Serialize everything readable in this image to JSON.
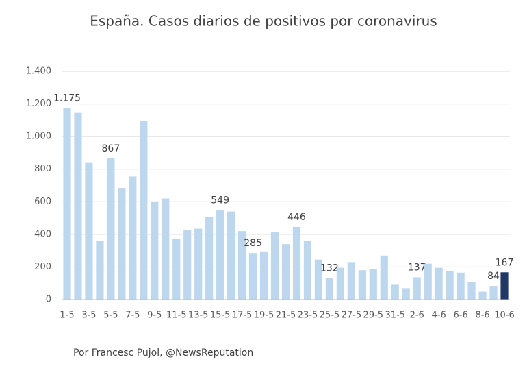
{
  "chart_data": {
    "type": "bar",
    "title": "España. Casos diarios de positivos por coronavirus",
    "source": "Por Francesc Pujol, @NewsReputation",
    "categories": [
      "1-5",
      null,
      "3-5",
      null,
      "5-5",
      null,
      "7-5",
      null,
      "9-5",
      null,
      "11-5",
      null,
      "13-5",
      null,
      "15-5",
      null,
      "17-5",
      null,
      "19-5",
      null,
      "21-5",
      null,
      "23-5",
      null,
      "25-5",
      null,
      "27-5",
      null,
      "29-5",
      null,
      "31-5",
      null,
      "2-6",
      null,
      "4-6",
      null,
      "6-6",
      null,
      "8-6",
      null,
      "10-6"
    ],
    "values": [
      1175,
      1145,
      838,
      358,
      867,
      685,
      755,
      1095,
      600,
      620,
      370,
      425,
      435,
      505,
      549,
      540,
      420,
      285,
      295,
      415,
      340,
      446,
      360,
      245,
      132,
      195,
      230,
      180,
      185,
      270,
      95,
      70,
      137,
      220,
      195,
      175,
      165,
      105,
      48,
      84,
      167
    ],
    "value_labels": [
      "1.175",
      null,
      null,
      null,
      "867",
      null,
      null,
      null,
      null,
      null,
      null,
      null,
      null,
      null,
      "549",
      null,
      null,
      "285",
      null,
      null,
      null,
      "446",
      null,
      null,
      "132",
      null,
      null,
      null,
      null,
      null,
      null,
      null,
      "137",
      null,
      null,
      null,
      null,
      null,
      null,
      "84",
      "167"
    ],
    "colors": [
      "#bdd7ee",
      "#bdd7ee",
      "#bdd7ee",
      "#bdd7ee",
      "#bdd7ee",
      "#bdd7ee",
      "#bdd7ee",
      "#bdd7ee",
      "#bdd7ee",
      "#bdd7ee",
      "#bdd7ee",
      "#bdd7ee",
      "#bdd7ee",
      "#bdd7ee",
      "#bdd7ee",
      "#bdd7ee",
      "#bdd7ee",
      "#bdd7ee",
      "#bdd7ee",
      "#bdd7ee",
      "#bdd7ee",
      "#bdd7ee",
      "#bdd7ee",
      "#bdd7ee",
      "#bdd7ee",
      "#bdd7ee",
      "#bdd7ee",
      "#bdd7ee",
      "#bdd7ee",
      "#bdd7ee",
      "#bdd7ee",
      "#bdd7ee",
      "#bdd7ee",
      "#bdd7ee",
      "#bdd7ee",
      "#bdd7ee",
      "#bdd7ee",
      "#bdd7ee",
      "#bdd7ee",
      "#bdd7ee",
      "#1f3864"
    ],
    "ylim": [
      0,
      1400
    ],
    "yticks": [
      0,
      200,
      400,
      600,
      800,
      {
        "value": 1000,
        "label": "1.000"
      },
      {
        "value": 1200,
        "label": "1.200"
      },
      {
        "value": 1400,
        "label": "1.400"
      }
    ],
    "grid": true
  }
}
